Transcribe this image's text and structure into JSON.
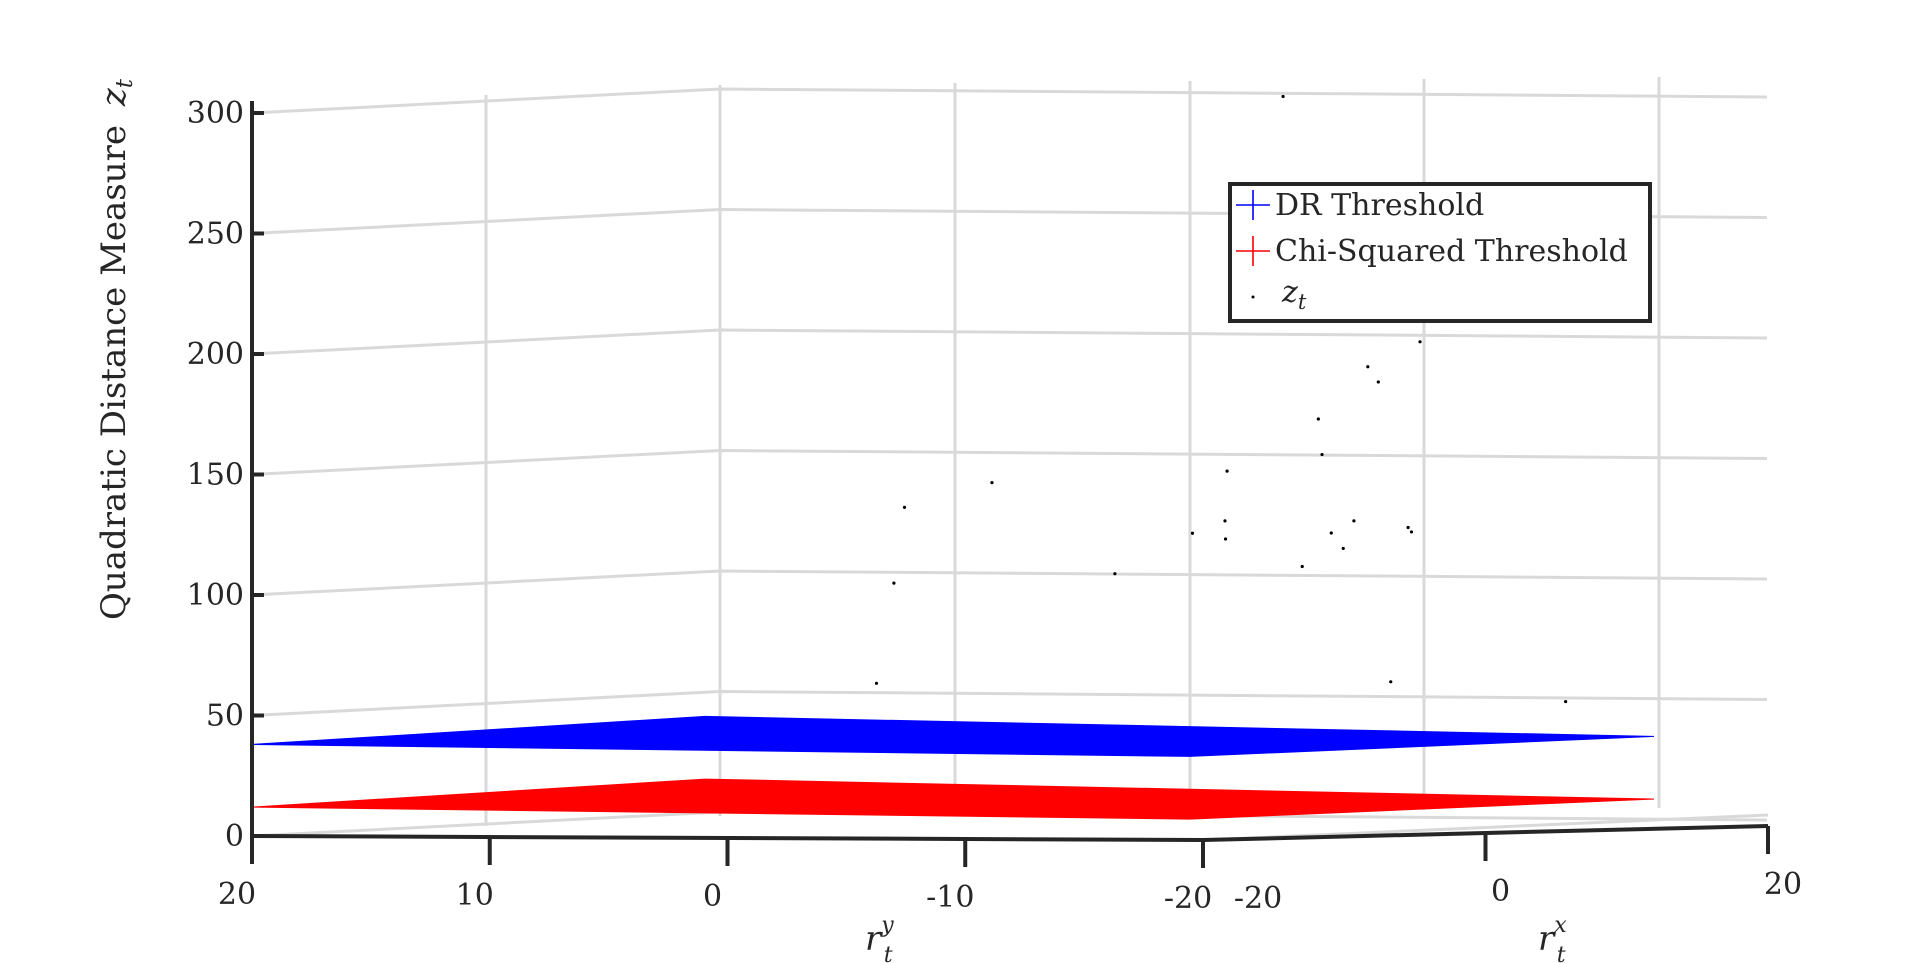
{
  "chart_data": {
    "type": "scatter",
    "projection": "3d",
    "title": "",
    "axes": {
      "x": {
        "label_main": "r",
        "label_sub": "t",
        "label_sup": "x",
        "range": [
          -20,
          20
        ],
        "ticks": [
          -20,
          0,
          20
        ],
        "tick_labels": [
          "-20",
          "0",
          "20"
        ]
      },
      "y": {
        "label_main": "r",
        "label_sub": "t",
        "label_sup": "y",
        "range": [
          -20,
          20
        ],
        "ticks": [
          20,
          10,
          0,
          -10,
          -20
        ],
        "tick_labels": [
          "20",
          "10",
          "0",
          "-10",
          "-20"
        ]
      },
      "z": {
        "label": "Quadratic Distance Measure",
        "label_symbol": "z",
        "label_symbol_sub": "t",
        "range": [
          0,
          300
        ],
        "ticks": [
          0,
          50,
          100,
          150,
          200,
          250,
          300
        ],
        "tick_labels": [
          "0",
          "50",
          "100",
          "150",
          "200",
          "250",
          "300"
        ]
      }
    },
    "grid": true,
    "legend": {
      "position": "top-right",
      "entries": [
        {
          "label": "DR Threshold",
          "color": "#0000ff",
          "marker": "plane"
        },
        {
          "label": "Chi-Squared Threshold",
          "color": "#ff0000",
          "marker": "plane"
        },
        {
          "label": "z",
          "label_sub": "t",
          "color": "#000000",
          "marker": "point"
        }
      ]
    },
    "surfaces": [
      {
        "name": "DR Threshold",
        "color": "#0000ff",
        "z": 38
      },
      {
        "name": "Chi-Squared Threshold",
        "color": "#ff0000",
        "z": 12
      }
    ],
    "scatter_series": {
      "name": "z_t",
      "color": "#000000",
      "points": [
        [
          -4.4,
          -14.1,
          306
        ],
        [
          -2.5,
          -13.2,
          233
        ],
        [
          1.6,
          -14.1,
          193
        ],
        [
          15.9,
          -7.8,
          201
        ],
        [
          11.6,
          -8.6,
          185
        ],
        [
          8.7,
          -7.8,
          170
        ],
        [
          16.2,
          -3.5,
          154
        ],
        [
          -1.8,
          -10.2,
          150
        ],
        [
          3.1,
          2.6,
          144
        ],
        [
          6.5,
          8.3,
          133
        ],
        [
          9.2,
          -3.6,
          120
        ],
        [
          6.3,
          -5.3,
          128
        ],
        [
          -12.5,
          -15.1,
          126
        ],
        [
          -1.2,
          -17.6,
          125
        ],
        [
          -4.1,
          -16.9,
          130
        ],
        [
          10.8,
          -7.6,
          116
        ],
        [
          9.5,
          -11.1,
          125
        ],
        [
          1.2,
          -12.8,
          124
        ],
        [
          -12.1,
          -11.6,
          109
        ],
        [
          3.9,
          7.2,
          102
        ],
        [
          1.5,
          -11.4,
          110
        ],
        [
          6.2,
          9.3,
          60
        ],
        [
          -2.5,
          -17.5,
          63
        ],
        [
          -1.9,
          -24.5,
          55
        ]
      ]
    }
  }
}
